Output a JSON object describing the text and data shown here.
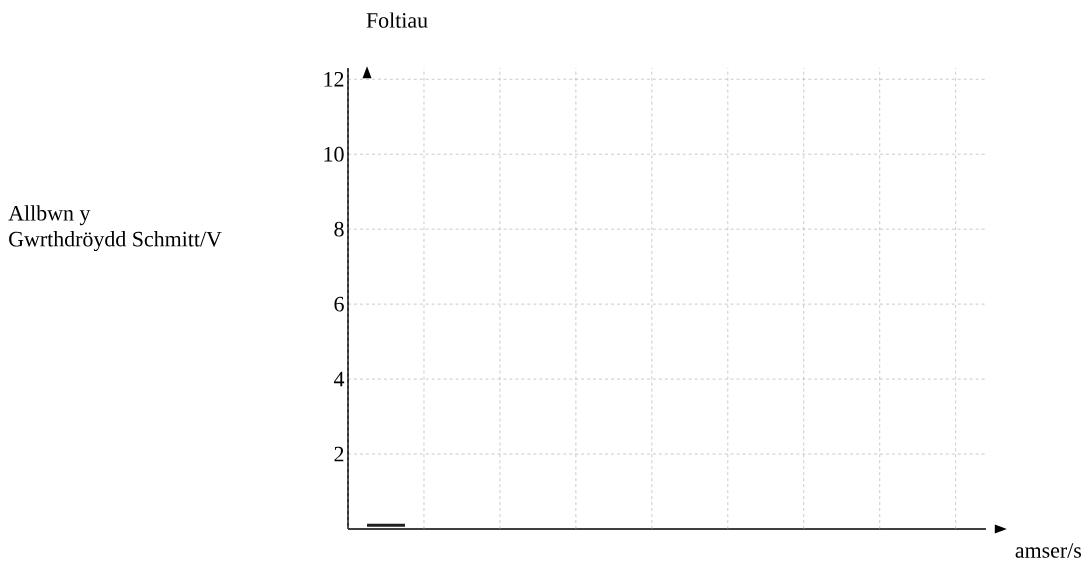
{
  "chart_data": {
    "type": "line",
    "ylabel": "Foltiau",
    "xlabel": "amser/s",
    "annotations": [
      "Allbwn y Gwrthdröydd Schmitt/V"
    ],
    "categories": [
      null,
      null,
      null,
      null,
      null,
      null,
      null,
      null,
      null,
      null,
      null,
      null,
      null,
      null,
      null,
      null,
      null
    ],
    "series": [
      {
        "color": "#231f20",
        "values": [
          0.1,
          0.1,
          null,
          null,
          null,
          null,
          null,
          null,
          null,
          null,
          null,
          null,
          null,
          null,
          null,
          null,
          null
        ]
      }
    ],
    "ylim": [
      0,
      12.3
    ],
    "yticks": [
      2,
      4,
      6,
      8,
      10,
      12
    ],
    "grid": true,
    "marker": "none",
    "line_style": "solid"
  }
}
